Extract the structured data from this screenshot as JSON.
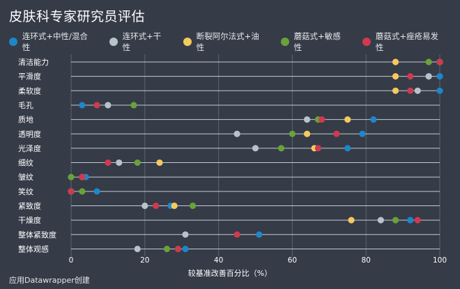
{
  "chart_data": {
    "type": "scatter",
    "subtype": "dot-plot",
    "title": "皮肤科专家研究员评估",
    "xlabel": "较基准改善百分比（%）",
    "ylabel": "",
    "xlim": [
      0,
      100
    ],
    "x_ticks": [
      "0",
      "20",
      "40",
      "60",
      "80",
      "100"
    ],
    "legend_position": "top",
    "categories": [
      "清洁能力",
      "平滑度",
      "柔软度",
      "毛孔",
      "质地",
      "透明度",
      "光泽度",
      "细纹",
      "皱纹",
      "笑纹",
      "紧致度",
      "干燥度",
      "整体紧致度",
      "整体观感"
    ],
    "series": [
      {
        "name": "连环式+中性/混合性",
        "color": "#1f86c8",
        "values": [
          100,
          100,
          100,
          3,
          82,
          79,
          75,
          null,
          4,
          7,
          27,
          92,
          51,
          31
        ]
      },
      {
        "name": "连环式+干性",
        "color": "#b7c3cb",
        "values": [
          100,
          97,
          94,
          10,
          64,
          45,
          50,
          13,
          3,
          0,
          20,
          84,
          31,
          18
        ]
      },
      {
        "name": "断裂阿尔法式+油性",
        "color": "#f6c95c",
        "values": [
          88,
          88,
          88,
          null,
          75,
          64,
          66,
          24,
          null,
          null,
          28,
          76,
          null,
          null
        ]
      },
      {
        "name": "蘑菇式+敏感性",
        "color": "#6aa23a",
        "values": [
          97,
          null,
          null,
          17,
          67,
          60,
          57,
          18,
          0,
          3,
          33,
          88,
          null,
          26
        ]
      },
      {
        "name": "蘑菇式+痤疮易发性",
        "color": "#cf3a4e",
        "values": [
          100,
          92,
          92,
          7,
          68,
          72,
          67,
          10,
          3,
          0,
          23,
          94,
          45,
          29
        ]
      }
    ],
    "grid": true
  },
  "footer": {
    "credit": "应用Datawrapper创建"
  }
}
